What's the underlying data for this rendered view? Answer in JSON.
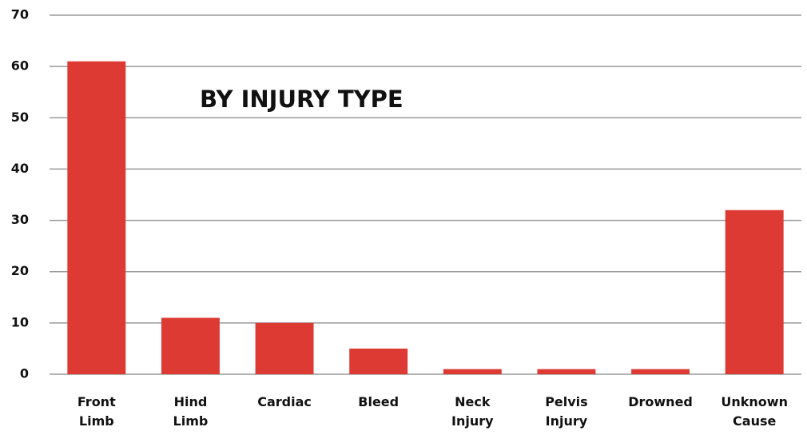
{
  "chart_data": {
    "type": "bar",
    "title": "BY INJURY TYPE",
    "categories": [
      "Front Limb",
      "Hind Limb",
      "Cardiac",
      "Bleed",
      "Neck Injury",
      "Pelvis Injury",
      "Drowned",
      "Unknown Cause"
    ],
    "values": [
      61,
      11,
      10,
      5,
      1,
      1,
      1,
      32
    ],
    "color": "#dc3a33",
    "ylim": [
      0,
      70
    ],
    "yticks": [
      0,
      10,
      20,
      30,
      40,
      50,
      60,
      70
    ],
    "grid": true
  }
}
